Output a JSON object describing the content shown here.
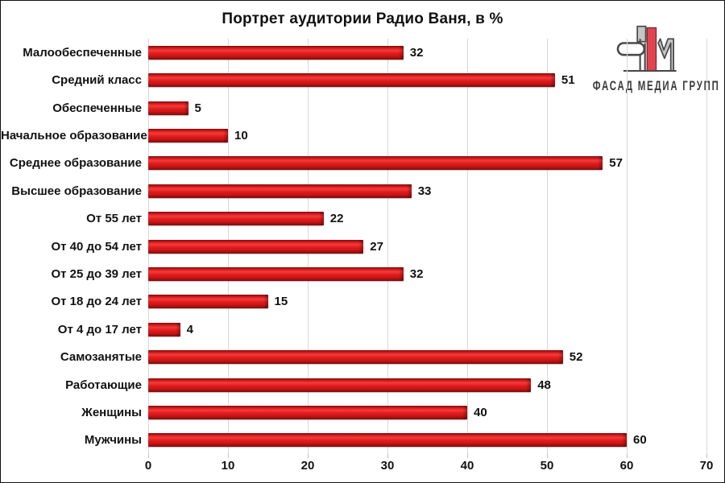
{
  "title": "Портрет аудитории Радио Ваня, в %",
  "logo": {
    "text": "ФАСАД МЕДИА ГРУПП",
    "mark_red": "#e2434f",
    "mark_gray": "#c6c6c6",
    "mark_outline": "#4a4a4a"
  },
  "chart_data": {
    "type": "bar",
    "orientation": "horizontal",
    "title": "Портрет аудитории Радио Ваня, в %",
    "categories": [
      "Малообеспеченные",
      "Средний класс",
      "Обеспеченные",
      "Начальное образование",
      "Среднее образование",
      "Высшее образование",
      "От 55 лет",
      "От 40 до 54 лет",
      "От 25 до 39 лет",
      "От 18 до 24 лет",
      "От 4 до 17 лет",
      "Самозанятые",
      "Работающие",
      "Женщины",
      "Мужчины"
    ],
    "values": [
      32,
      51,
      5,
      10,
      57,
      33,
      22,
      27,
      32,
      15,
      4,
      52,
      48,
      40,
      60
    ],
    "xlabel": "",
    "ylabel": "",
    "xlim": [
      0,
      70
    ],
    "xticks": [
      0,
      10,
      20,
      30,
      40,
      50,
      60,
      70
    ],
    "grid": true,
    "legend": "none",
    "bar_color": "#e11b1b",
    "bar_color_dark": "#7e0b0b",
    "grid_color": "#d9d9d9",
    "text_color": "#111111"
  }
}
